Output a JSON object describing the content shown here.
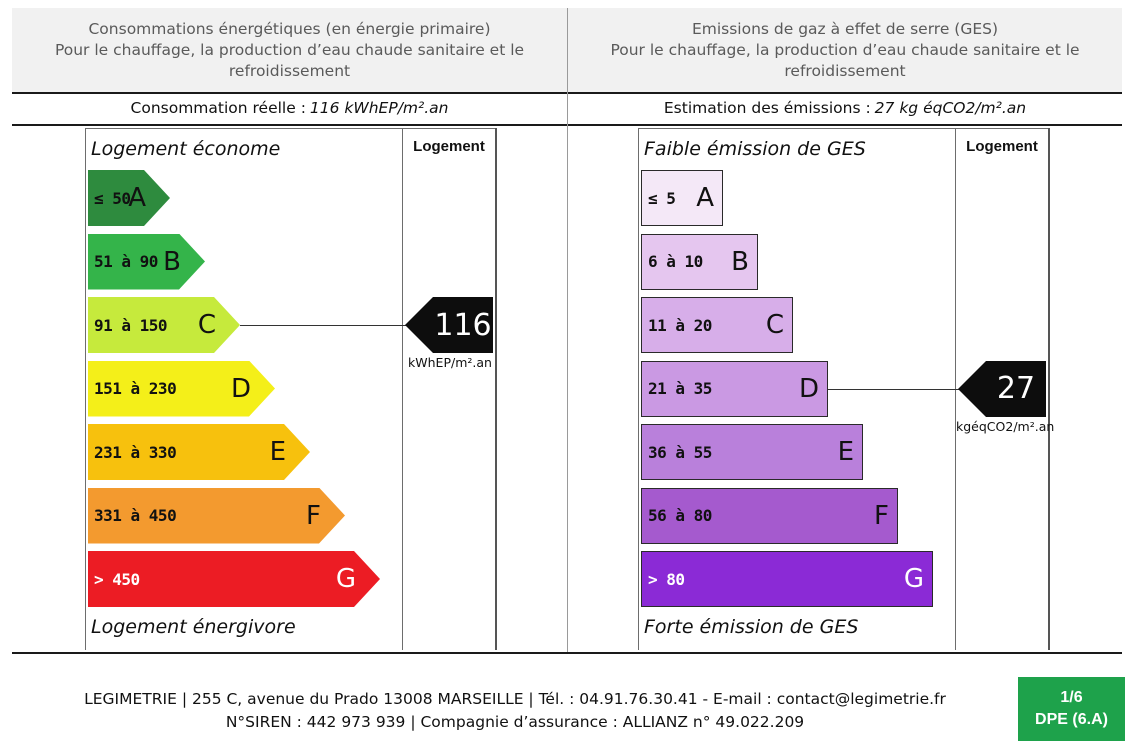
{
  "header": {
    "energy": {
      "line1": "Consommations énergétiques (en énergie primaire)",
      "line2": "Pour le chauffage, la production d’eau chaude sanitaire et le",
      "line3": "refroidissement"
    },
    "ges": {
      "line1": "Emissions de gaz à effet de serre (GES)",
      "line2": "Pour le chauffage, la production d’eau chaude sanitaire et le",
      "line3": "refroidissement"
    }
  },
  "summary": {
    "energy_label": "Consommation réelle :",
    "energy_value": "116 kWhEP/m².an",
    "ges_label": "Estimation des émissions :",
    "ges_value": "27 kg éqCO2/m².an"
  },
  "energy_scale": {
    "top_label": "Logement économe",
    "bottom_label": "Logement énergivore",
    "column_label": "Logement",
    "classes": [
      {
        "range": "≤ 50",
        "letter": "A",
        "color": "#2e8b3e",
        "text_color": "#111111"
      },
      {
        "range": "51 à 90",
        "letter": "B",
        "color": "#34b44a",
        "text_color": "#111111"
      },
      {
        "range": "91 à 150",
        "letter": "C",
        "color": "#c6ea3c",
        "text_color": "#111111"
      },
      {
        "range": "151 à 230",
        "letter": "D",
        "color": "#f4ef19",
        "text_color": "#111111"
      },
      {
        "range": "231 à 330",
        "letter": "E",
        "color": "#f7c10d",
        "text_color": "#111111"
      },
      {
        "range": "331 à 450",
        "letter": "F",
        "color": "#f39a2f",
        "text_color": "#111111"
      },
      {
        "range": "> 450",
        "letter": "G",
        "color": "#ec1c24",
        "text_color": "#ffffff"
      }
    ],
    "value": "116",
    "unit": "kWhEP/m².an",
    "class_index": 2
  },
  "ges_scale": {
    "top_label": "Faible émission de GES",
    "bottom_label": "Forte émission de GES",
    "column_label": "Logement",
    "classes": [
      {
        "range": "≤ 5",
        "letter": "A",
        "color": "#f4e8f7",
        "text_color": "#111111"
      },
      {
        "range": "6 à 10",
        "letter": "B",
        "color": "#e5c6ef",
        "text_color": "#111111"
      },
      {
        "range": "11 à 20",
        "letter": "C",
        "color": "#d7aee9",
        "text_color": "#111111"
      },
      {
        "range": "21 à 35",
        "letter": "D",
        "color": "#ca99e3",
        "text_color": "#111111"
      },
      {
        "range": "36 à 55",
        "letter": "E",
        "color": "#b980db",
        "text_color": "#111111"
      },
      {
        "range": "56 à 80",
        "letter": "F",
        "color": "#a55ace",
        "text_color": "#111111"
      },
      {
        "range": "> 80",
        "letter": "G",
        "color": "#8b2ad6",
        "text_color": "#ffffff"
      }
    ],
    "value": "27",
    "unit": "kgéqCO2/m².an",
    "class_index": 3
  },
  "footer": {
    "line1": "LEGIMETRIE | 255 C, avenue du Prado 13008 MARSEILLE | Tél. : 04.91.76.30.41 - E-mail : contact@legimetrie.fr",
    "line2": "N°SIREN : 442 973 939 | Compagnie d’assurance : ALLIANZ n° 49.022.209",
    "page": "1/6",
    "doc_code": "DPE (6.A)"
  }
}
